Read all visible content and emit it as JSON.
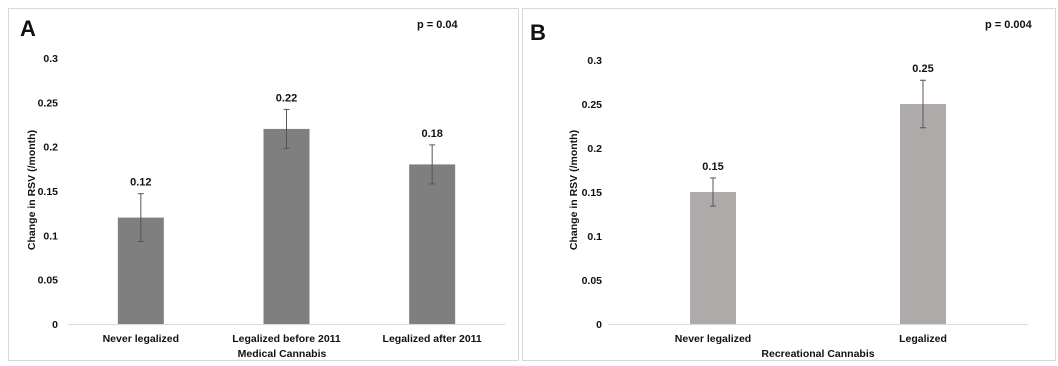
{
  "chart_data": [
    {
      "type": "bar",
      "panel_label": "A",
      "p_value": "p = 0.04",
      "ylabel": "Change in RSV (/month)",
      "xlabel": "Medical Cannabis",
      "categories": [
        "Never legalized",
        "Legalized before 2011",
        "Legalized after 2011"
      ],
      "values": [
        0.12,
        0.22,
        0.18
      ],
      "value_labels": [
        "0.12",
        "0.22",
        "0.18"
      ],
      "error": [
        0.027,
        0.022,
        0.022
      ],
      "ylim": [
        0,
        0.3
      ],
      "yticks": [
        "0",
        "0.05",
        "0.1",
        "0.15",
        "0.2",
        "0.25",
        "0.3"
      ],
      "bar_color": "#7f7f7f",
      "grid": false
    },
    {
      "type": "bar",
      "panel_label": "B",
      "p_value": "p = 0.004",
      "ylabel": "Change in RSV (/month)",
      "xlabel": "Recreational Cannabis",
      "categories": [
        "Never legalized",
        "Legalized"
      ],
      "values": [
        0.15,
        0.25
      ],
      "value_labels": [
        "0.15",
        "0.25"
      ],
      "error": [
        0.016,
        0.027
      ],
      "ylim": [
        0,
        0.3
      ],
      "yticks": [
        "0",
        "0.05",
        "0.1",
        "0.15",
        "0.2",
        "0.25",
        "0.3"
      ],
      "bar_color": "#aeaaaa",
      "grid": false
    }
  ]
}
